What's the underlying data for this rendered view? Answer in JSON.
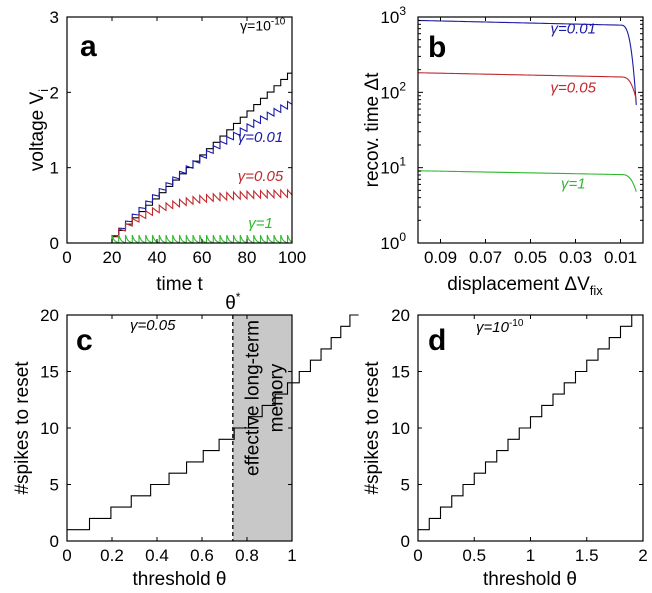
{
  "chart_data": [
    {
      "panel": "a",
      "type": "line",
      "xlabel": "time t",
      "ylabel": "voltage V",
      "ylabel_sub": "i",
      "xlim": [
        0,
        100
      ],
      "ylim": [
        0,
        3
      ],
      "xticks": [
        "0",
        "20",
        "40",
        "60",
        "80",
        "100"
      ],
      "yticks": [
        "0",
        "1",
        "2",
        "3"
      ],
      "spike_start": 20,
      "spike_period": 3,
      "series": [
        {
          "name": "γ=10",
          "name_sup": "-10",
          "color": "#000000",
          "gamma": 1e-10,
          "jump": 0.0835,
          "label_x": 87,
          "label_y": 2.82
        },
        {
          "name": "γ=0.01",
          "color": "#1a1aa6",
          "gamma": 0.01,
          "jump": 0.1,
          "label_x": 86,
          "label_y": 1.34
        },
        {
          "name": "γ=0.05",
          "color": "#c0282d",
          "gamma": 0.05,
          "jump": 0.1,
          "label_x": 86,
          "label_y": 0.82
        },
        {
          "name": "γ=1",
          "color": "#2eb82e",
          "gamma": 1,
          "jump": 0.1,
          "label_x": 86,
          "label_y": 0.2
        }
      ]
    },
    {
      "panel": "b",
      "type": "line",
      "xlabel": "displacement ΔV",
      "xlabel_sub": "fix",
      "ylabel": "recov. time Δt",
      "xlim": [
        0.1,
        0.0
      ],
      "ylim_log10": [
        0,
        3
      ],
      "xticks": [
        "0.09",
        "0.07",
        "0.05",
        "0.03",
        "0.01"
      ],
      "xtick_values": [
        0.09,
        0.07,
        0.05,
        0.03,
        0.01
      ],
      "yticks": [
        {
          "base": "10",
          "exp": "0"
        },
        {
          "base": "10",
          "exp": "1"
        },
        {
          "base": "10",
          "exp": "2"
        },
        {
          "base": "10",
          "exp": "3"
        }
      ],
      "series": [
        {
          "name": "γ=0.01",
          "color": "#1a1aa6",
          "start": 900,
          "at_001": 780,
          "end": 68,
          "label_x": 0.031,
          "label_y": 600
        },
        {
          "name": "γ=0.05",
          "color": "#c0282d",
          "start": 182,
          "at_001": 160,
          "end": 80,
          "label_x": 0.031,
          "label_y": 100
        },
        {
          "name": "γ=1",
          "color": "#2eb82e",
          "start": 9.1,
          "at_001": 8.1,
          "end": 4.8,
          "label_x": 0.031,
          "label_y": 5.3
        }
      ]
    },
    {
      "panel": "c",
      "type": "line",
      "xlabel": "threshold θ",
      "ylabel": "#spikes to reset",
      "gamma_label": "γ=0.05",
      "xlim": [
        0,
        1
      ],
      "ylim": [
        0,
        20
      ],
      "xticks": [
        "0",
        "0.2",
        "0.4",
        "0.6",
        "0.8",
        "1"
      ],
      "yticks": [
        "0",
        "5",
        "10",
        "15",
        "20"
      ],
      "theta_star_label": "θ",
      "theta_star_sup": "*",
      "theta_star": 0.737,
      "shaded_region": [
        0.737,
        1.0
      ],
      "shaded_label_line1": "effective long-term",
      "shaded_label_line2": "memory",
      "step_jump": 0.1,
      "decay_per_step": 0.05,
      "max_steps": 20
    },
    {
      "panel": "d",
      "type": "line",
      "xlabel": "threshold θ",
      "ylabel": "#spikes to reset",
      "gamma_label": "γ=10",
      "gamma_label_sup": "-10",
      "xlim": [
        0,
        2
      ],
      "ylim": [
        0,
        20
      ],
      "xticks": [
        "0",
        "0.5",
        "1",
        "1.5",
        "2"
      ],
      "yticks": [
        "0",
        "5",
        "10",
        "15",
        "20"
      ],
      "step_jump": 0.1,
      "max_steps": 20
    }
  ]
}
